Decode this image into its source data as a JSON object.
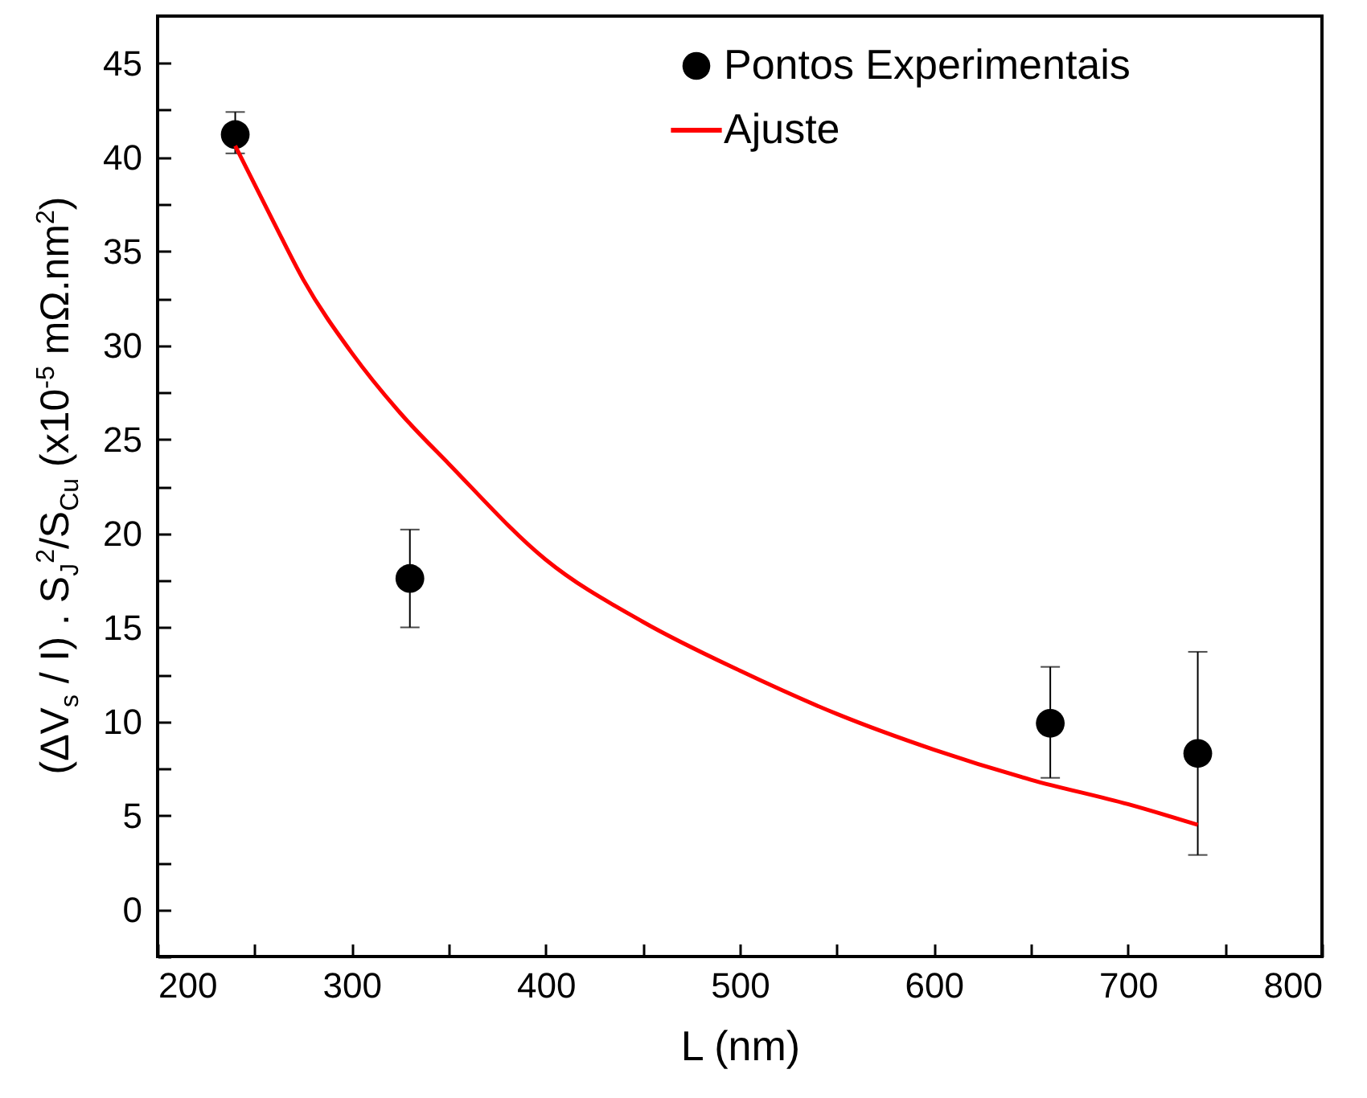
{
  "chart_data": {
    "type": "scatter",
    "xlabel": "L (nm)",
    "ylabel": "(ΔV$_{s}$ / I) . S$_{J}$$^{2}$/S$_{Cu}$ (x10$^{-5}$ mΩ.nm$^{2}$)",
    "xlim": [
      200,
      800
    ],
    "ylim": [
      -2.5,
      47.5
    ],
    "xticks": [
      200,
      {
        "value": 250,
        "label": null
      },
      300,
      {
        "value": 350,
        "label": null
      },
      400,
      {
        "value": 450,
        "label": null
      },
      500,
      {
        "value": 550,
        "label": null
      },
      600,
      {
        "value": 650,
        "label": null
      },
      700,
      {
        "value": 750,
        "label": null
      },
      800
    ],
    "yticks": [
      {
        "value": -2.5,
        "label": null
      },
      0,
      {
        "value": 2.5,
        "label": null
      },
      5,
      {
        "value": 7.5,
        "label": null
      },
      10,
      {
        "value": 12.5,
        "label": null
      },
      15,
      {
        "value": 17.5,
        "label": null
      },
      20,
      {
        "value": 22.5,
        "label": null
      },
      25,
      {
        "value": 27.5,
        "label": null
      },
      30,
      {
        "value": 32.5,
        "label": null
      },
      35,
      {
        "value": 37.5,
        "label": null
      },
      40,
      {
        "value": 42.5,
        "label": null
      },
      45
    ],
    "grid": false,
    "legend": "top right",
    "series": [
      {
        "name": "Pontos Experimentais",
        "type": "scatter",
        "marker": "circle",
        "color": "#000000",
        "x": [
          240,
          330,
          660,
          736
        ],
        "values": [
          41.2,
          17.6,
          9.9,
          8.3
        ],
        "errors": [
          [
            40.2,
            42.4
          ],
          [
            15.0,
            20.2
          ],
          [
            7.0,
            12.9
          ],
          [
            2.9,
            13.7
          ]
        ]
      },
      {
        "name": "Ajuste",
        "type": "line",
        "color": "#ff0000",
        "x": [
          240,
          260,
          275,
          300,
          325,
          350,
          400,
          450,
          500,
          550,
          600,
          650,
          700,
          736
        ],
        "values": [
          40.6,
          36.5,
          33.5,
          29.6,
          26.4,
          23.7,
          18.6,
          15.3,
          12.7,
          10.4,
          8.5,
          6.9,
          5.6,
          4.5
        ]
      }
    ]
  }
}
